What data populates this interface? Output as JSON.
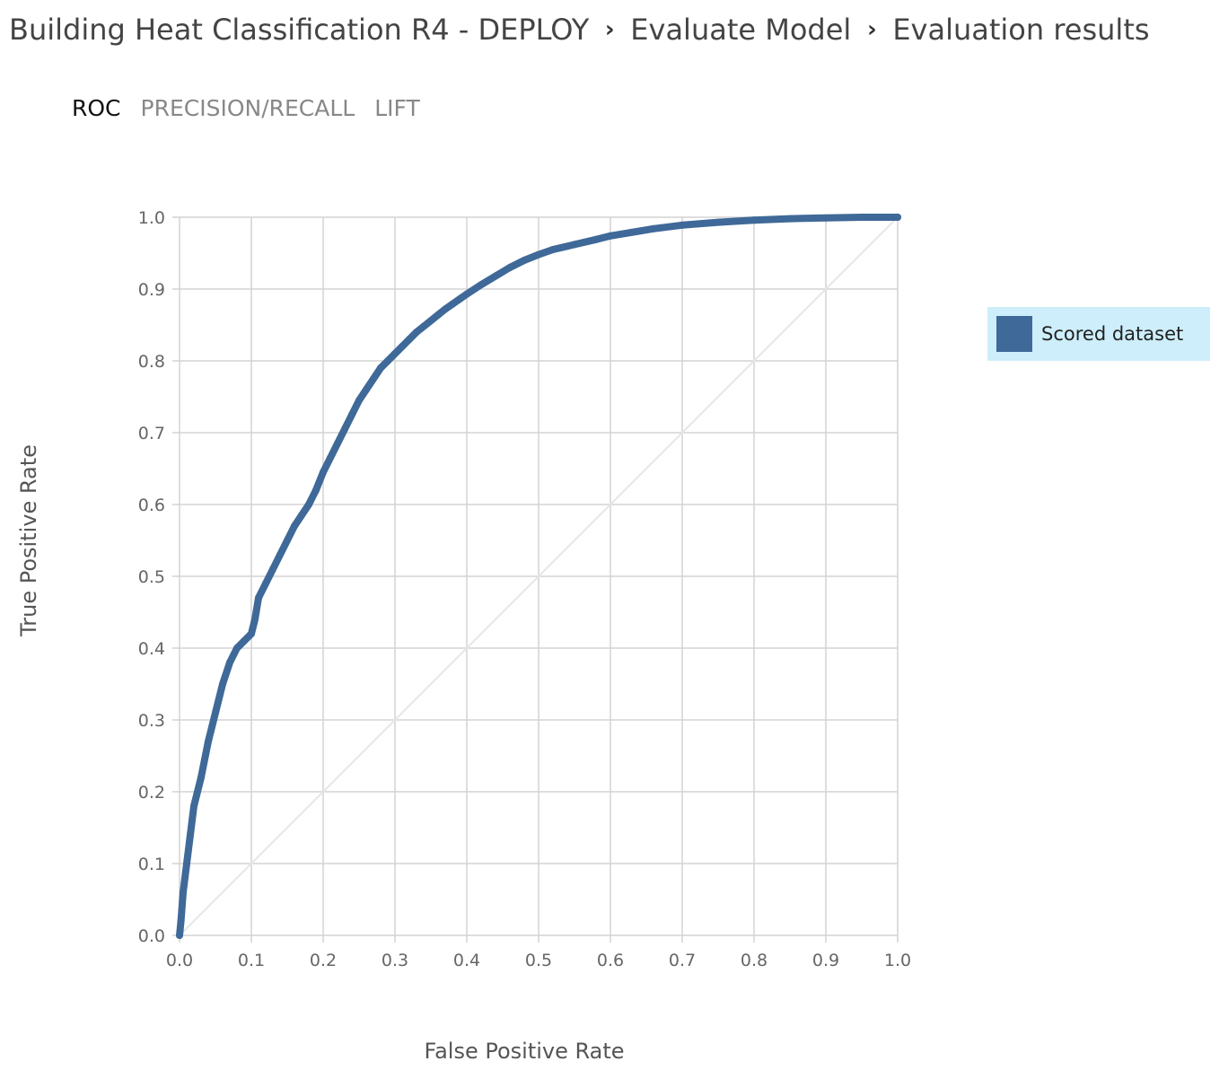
{
  "breadcrumb": {
    "items": [
      "Building Heat Classification R4 - DEPLOY",
      "Evaluate Model",
      "Evaluation results"
    ],
    "separator": "›"
  },
  "tabs": [
    {
      "label": "ROC",
      "active": true
    },
    {
      "label": "PRECISION/RECALL",
      "active": false
    },
    {
      "label": "LIFT",
      "active": false
    }
  ],
  "legend": {
    "label": "Scored dataset",
    "color": "#3f6998",
    "background": "#cdeefa"
  },
  "chart_data": {
    "type": "line",
    "title": "",
    "xlabel": "False Positive Rate",
    "ylabel": "True Positive Rate",
    "xlim": [
      0,
      1
    ],
    "ylim": [
      0,
      1
    ],
    "x_ticks": [
      "0.0",
      "0.1",
      "0.2",
      "0.3",
      "0.4",
      "0.5",
      "0.6",
      "0.7",
      "0.8",
      "0.9",
      "1.0"
    ],
    "y_ticks": [
      "0.0",
      "0.1",
      "0.2",
      "0.3",
      "0.4",
      "0.5",
      "0.6",
      "0.7",
      "0.8",
      "0.9",
      "1.0"
    ],
    "grid": true,
    "legend_position": "right",
    "series": [
      {
        "name": "Scored dataset",
        "color": "#3f6998",
        "x": [
          0.0,
          0.002,
          0.005,
          0.01,
          0.015,
          0.02,
          0.03,
          0.04,
          0.05,
          0.06,
          0.07,
          0.08,
          0.09,
          0.1,
          0.105,
          0.11,
          0.12,
          0.13,
          0.14,
          0.15,
          0.16,
          0.17,
          0.18,
          0.19,
          0.2,
          0.21,
          0.22,
          0.23,
          0.24,
          0.25,
          0.26,
          0.27,
          0.28,
          0.29,
          0.3,
          0.31,
          0.32,
          0.33,
          0.34,
          0.35,
          0.36,
          0.37,
          0.38,
          0.39,
          0.4,
          0.42,
          0.44,
          0.46,
          0.48,
          0.5,
          0.52,
          0.55,
          0.58,
          0.6,
          0.63,
          0.66,
          0.7,
          0.75,
          0.8,
          0.85,
          0.9,
          0.95,
          1.0
        ],
        "y": [
          0.0,
          0.02,
          0.06,
          0.1,
          0.14,
          0.18,
          0.22,
          0.27,
          0.31,
          0.35,
          0.38,
          0.4,
          0.41,
          0.42,
          0.44,
          0.47,
          0.49,
          0.51,
          0.53,
          0.55,
          0.57,
          0.585,
          0.6,
          0.62,
          0.645,
          0.665,
          0.685,
          0.705,
          0.725,
          0.745,
          0.76,
          0.775,
          0.79,
          0.8,
          0.81,
          0.82,
          0.83,
          0.84,
          0.848,
          0.856,
          0.864,
          0.872,
          0.879,
          0.886,
          0.893,
          0.906,
          0.918,
          0.93,
          0.94,
          0.948,
          0.955,
          0.962,
          0.969,
          0.974,
          0.979,
          0.984,
          0.989,
          0.993,
          0.996,
          0.998,
          0.999,
          1.0,
          1.0
        ]
      },
      {
        "name": "",
        "color": "#e6e6e6",
        "x": [
          0,
          1
        ],
        "y": [
          0,
          1
        ]
      }
    ]
  }
}
